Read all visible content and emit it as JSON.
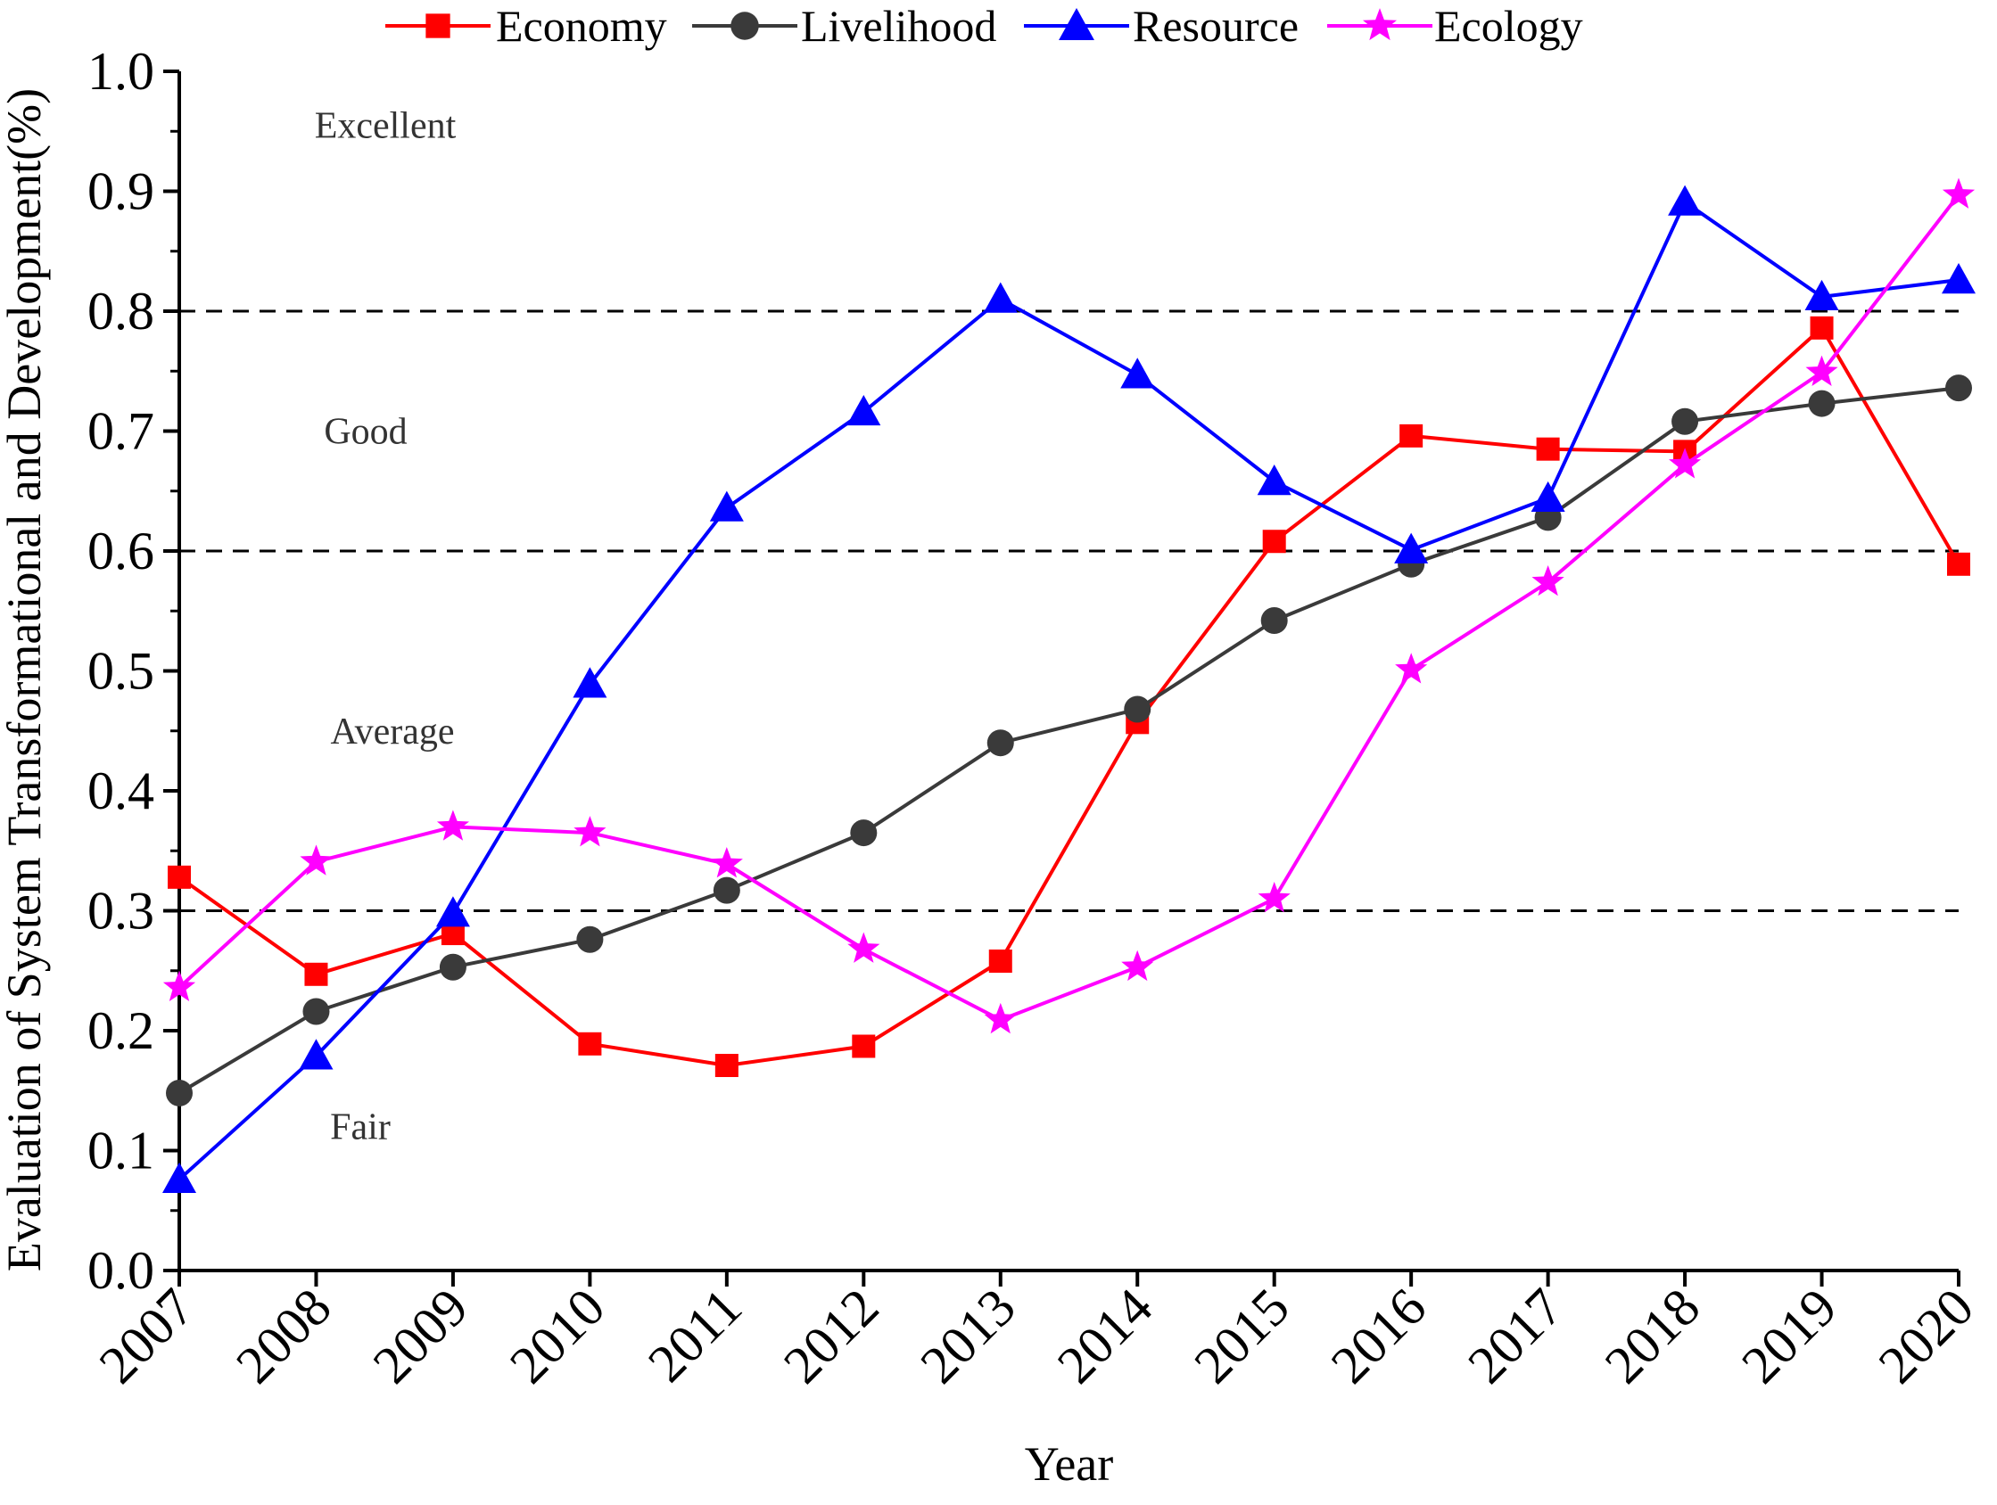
{
  "chart_data": {
    "type": "line",
    "title": "",
    "xlabel": "Year",
    "ylabel": "Evaluation of System Transformational and Development(%)",
    "x": [
      "2007",
      "2008",
      "2009",
      "2010",
      "2011",
      "2012",
      "2013",
      "2014",
      "2015",
      "2016",
      "2017",
      "2018",
      "2019",
      "2020"
    ],
    "ylim": [
      0.0,
      1.0
    ],
    "yticks": [
      0.0,
      0.1,
      0.2,
      0.3,
      0.4,
      0.5,
      0.6,
      0.7,
      0.8,
      0.9,
      1.0
    ],
    "ytick_labels": [
      "0.0",
      "0.1",
      "0.2",
      "0.3",
      "0.4",
      "0.5",
      "0.6",
      "0.7",
      "0.8",
      "0.9",
      "1.0"
    ],
    "legend_position": "top",
    "series": [
      {
        "name": "Economy",
        "color": "#ff0000",
        "marker": "square",
        "values": [
          0.328,
          0.247,
          0.281,
          0.189,
          0.171,
          0.187,
          0.258,
          0.457,
          0.608,
          0.696,
          0.685,
          0.683,
          0.786,
          0.589
        ]
      },
      {
        "name": "Livelihood",
        "color": "#3a3a3a",
        "marker": "circle",
        "values": [
          0.148,
          0.216,
          0.253,
          0.276,
          0.317,
          0.365,
          0.44,
          0.468,
          0.542,
          0.589,
          0.628,
          0.708,
          0.723,
          0.736
        ]
      },
      {
        "name": "Resource",
        "color": "#0000ff",
        "marker": "triangle",
        "values": [
          0.076,
          0.179,
          0.298,
          0.489,
          0.636,
          0.716,
          0.81,
          0.747,
          0.658,
          0.601,
          0.644,
          0.891,
          0.812,
          0.826
        ]
      },
      {
        "name": "Ecology",
        "color": "#ff00ff",
        "marker": "star",
        "values": [
          0.236,
          0.341,
          0.37,
          0.365,
          0.339,
          0.268,
          0.209,
          0.253,
          0.31,
          0.501,
          0.574,
          0.672,
          0.749,
          0.897
        ]
      }
    ],
    "reference_lines": [
      0.3,
      0.6,
      0.8
    ],
    "annotations": [
      {
        "text": "Excellent",
        "x_year": "2008",
        "y": 0.955
      },
      {
        "text": "Good",
        "x_year": "2008",
        "y": 0.7
      },
      {
        "text": "Average",
        "x_year": "2008",
        "y": 0.45
      },
      {
        "text": "Fair",
        "x_year": "2008",
        "y": 0.12
      }
    ]
  }
}
